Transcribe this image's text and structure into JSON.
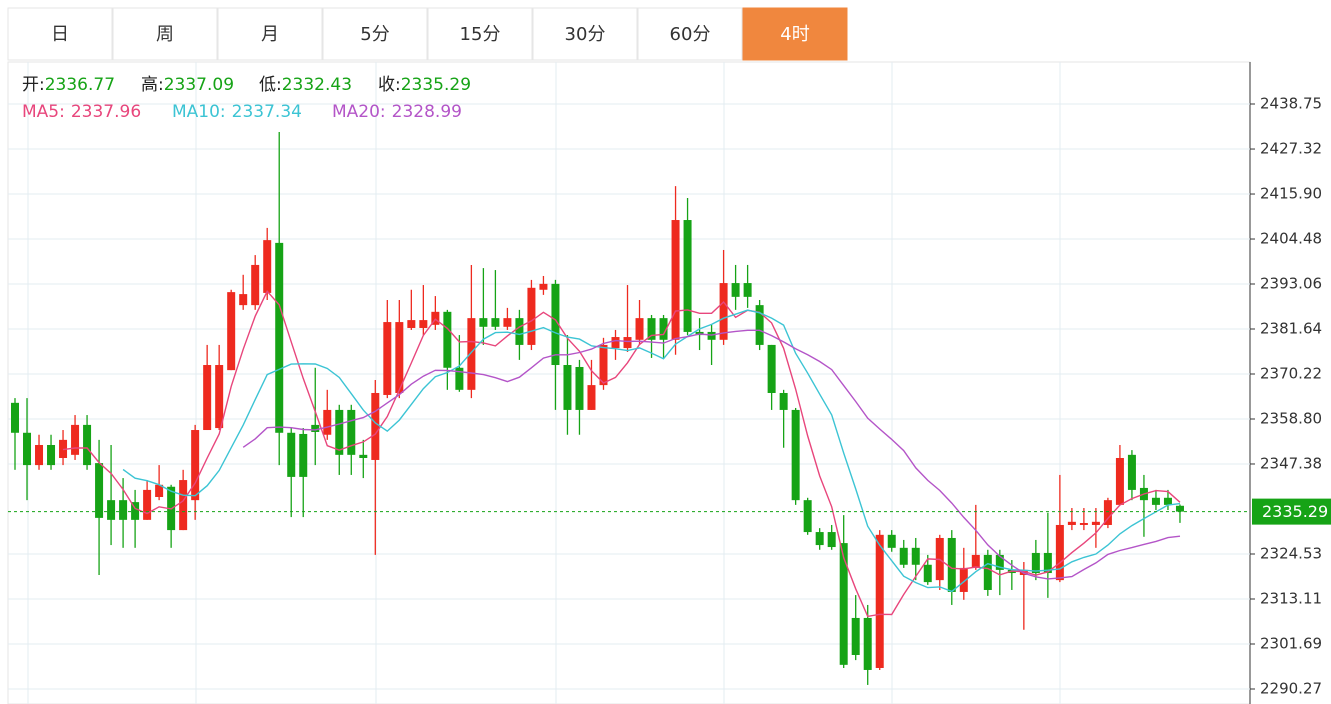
{
  "tabs": {
    "items": [
      "日",
      "周",
      "月",
      "5分",
      "15分",
      "30分",
      "60分",
      "4时"
    ],
    "active": 7
  },
  "chart_data": {
    "type": "candlestick",
    "ohlc_labels": [
      "开:",
      "高:",
      "低:",
      "收:"
    ],
    "ma": [
      {
        "name": "MA5:",
        "period": 5,
        "value": 2337.96,
        "color": "#e8467c"
      },
      {
        "name": "MA10:",
        "period": 10,
        "value": 2337.34,
        "color": "#3cc4d4"
      },
      {
        "name": "MA20:",
        "period": 20,
        "value": 2328.99,
        "color": "#b455c8"
      }
    ],
    "up_color": "#ee2a1f",
    "down_color": "#16a316",
    "ylim": [
      2286.46,
      2449.41
    ],
    "yticks": [
      2438.75,
      2427.32,
      {
        "value": 2415.9,
        "label": "2415.90"
      },
      2404.48,
      2393.06,
      2381.64,
      2370.22,
      {
        "value": 2358.8,
        "label": "2358.80"
      },
      2347.38,
      2324.53,
      2313.11,
      2301.69,
      2290.27
    ],
    "grid": true,
    "ohlc": [
      [
        2362.9,
        2364.1,
        2345.9,
        2355.3
      ],
      [
        2355.3,
        2364.1,
        2338.2,
        2347.1
      ],
      [
        2347.1,
        2354.8,
        2345.9,
        2352.2
      ],
      [
        2352.2,
        2354.8,
        2345.9,
        2347.1
      ],
      [
        2348.9,
        2356.0,
        2347.1,
        2353.5
      ],
      [
        2349.7,
        2359.8,
        2348.4,
        2357.3
      ],
      [
        2357.3,
        2359.8,
        2345.9,
        2347.1
      ],
      [
        2347.6,
        2353.5,
        2319.2,
        2333.7
      ],
      [
        2338.2,
        2352.2,
        2326.8,
        2333.2
      ],
      [
        2338.2,
        2343.8,
        2326.1,
        2333.2
      ],
      [
        2337.7,
        2340.8,
        2326.1,
        2333.2
      ],
      [
        2333.2,
        2343.3,
        2333.2,
        2340.8
      ],
      [
        2339.0,
        2347.1,
        2338.2,
        2342.1
      ],
      [
        2341.6,
        2342.1,
        2326.1,
        2330.6
      ],
      [
        2330.6,
        2345.9,
        2330.6,
        2343.3
      ],
      [
        2338.2,
        2357.3,
        2333.2,
        2356.0
      ],
      [
        2356.0,
        2377.6,
        2356.0,
        2372.5
      ],
      [
        2356.5,
        2377.6,
        2356.0,
        2372.5
      ],
      [
        2371.2,
        2391.6,
        2371.2,
        2391.0
      ],
      [
        2387.7,
        2395.4,
        2386.5,
        2390.5
      ],
      [
        2387.7,
        2400.4,
        2386.5,
        2397.9
      ],
      [
        2390.8,
        2407.3,
        2389.0,
        2404.2
      ],
      [
        2403.5,
        2431.65,
        2347.1,
        2355.3
      ],
      [
        2355.3,
        2356.5,
        2333.9,
        2344.1
      ],
      [
        2355.0,
        2356.5,
        2333.9,
        2344.1
      ],
      [
        2357.3,
        2371.8,
        2347.1,
        2355.5
      ],
      [
        2354.8,
        2366.2,
        2353.5,
        2361.1
      ],
      [
        2361.1,
        2362.4,
        2344.6,
        2349.7
      ],
      [
        2361.1,
        2362.4,
        2344.6,
        2349.7
      ],
      [
        2349.7,
        2353.5,
        2343.8,
        2348.9
      ],
      [
        2348.4,
        2368.7,
        2324.3,
        2365.4
      ],
      [
        2364.9,
        2389.0,
        2364.1,
        2383.4
      ],
      [
        2365.4,
        2389.0,
        2364.1,
        2383.4
      ],
      [
        2381.9,
        2391.6,
        2381.4,
        2383.9
      ],
      [
        2381.9,
        2392.8,
        2380.1,
        2383.9
      ],
      [
        2382.7,
        2390.0,
        2381.4,
        2386.0
      ],
      [
        2386.0,
        2386.5,
        2366.2,
        2371.8
      ],
      [
        2371.8,
        2380.1,
        2365.7,
        2366.2
      ],
      [
        2366.2,
        2397.9,
        2364.1,
        2384.4
      ],
      [
        2384.4,
        2397.1,
        2377.6,
        2382.2
      ],
      [
        2384.4,
        2396.6,
        2381.4,
        2382.2
      ],
      [
        2382.2,
        2387.0,
        2381.4,
        2384.4
      ],
      [
        2384.4,
        2386.5,
        2373.8,
        2377.6
      ],
      [
        2377.6,
        2394.1,
        2376.3,
        2392.1
      ],
      [
        2391.6,
        2395.1,
        2390.3,
        2393.1
      ],
      [
        2393.1,
        2394.1,
        2361.1,
        2372.5
      ],
      [
        2372.5,
        2380.1,
        2354.8,
        2361.1
      ],
      [
        2372.0,
        2373.8,
        2354.8,
        2361.1
      ],
      [
        2361.1,
        2373.8,
        2361.1,
        2367.4
      ],
      [
        2367.4,
        2379.4,
        2366.2,
        2377.6
      ],
      [
        2376.8,
        2381.4,
        2373.8,
        2379.6
      ],
      [
        2376.8,
        2392.8,
        2375.8,
        2379.6
      ],
      [
        2378.9,
        2389.0,
        2377.6,
        2384.4
      ],
      [
        2384.4,
        2385.2,
        2374.3,
        2378.9
      ],
      [
        2384.4,
        2385.2,
        2374.3,
        2378.9
      ],
      [
        2378.9,
        2417.9,
        2375.1,
        2409.3
      ],
      [
        2409.3,
        2414.9,
        2380.1,
        2380.9
      ],
      [
        2380.9,
        2384.4,
        2376.3,
        2380.1
      ],
      [
        2380.9,
        2382.7,
        2372.5,
        2378.9
      ],
      [
        2378.9,
        2401.7,
        2377.6,
        2393.3
      ],
      [
        2393.3,
        2397.9,
        2386.5,
        2389.8
      ],
      [
        2393.3,
        2397.9,
        2387.0,
        2389.8
      ],
      [
        2387.7,
        2389.0,
        2376.3,
        2377.6
      ],
      [
        2377.6,
        2377.6,
        2361.1,
        2365.4
      ],
      [
        2365.4,
        2366.2,
        2351.5,
        2361.1
      ],
      [
        2361.1,
        2361.6,
        2337.0,
        2338.2
      ],
      [
        2338.2,
        2338.8,
        2329.4,
        2330.1
      ],
      [
        2330.1,
        2331.1,
        2325.6,
        2326.8
      ],
      [
        2330.1,
        2331.9,
        2325.6,
        2326.3
      ],
      [
        2327.3,
        2334.4,
        2295.6,
        2296.4
      ],
      [
        2308.3,
        2314.1,
        2297.6,
        2298.9
      ],
      [
        2308.3,
        2311.6,
        2291.3,
        2295.1
      ],
      [
        2295.6,
        2330.6,
        2295.1,
        2329.4
      ],
      [
        2329.4,
        2330.6,
        2325.1,
        2326.1
      ],
      [
        2326.1,
        2328.1,
        2321.0,
        2321.8
      ],
      [
        2326.1,
        2328.6,
        2317.9,
        2321.8
      ],
      [
        2321.8,
        2324.3,
        2316.7,
        2317.4
      ],
      [
        2317.9,
        2329.4,
        2315.4,
        2328.6
      ],
      [
        2328.6,
        2330.6,
        2311.6,
        2314.9
      ],
      [
        2314.9,
        2326.1,
        2312.9,
        2321.0
      ],
      [
        2321.0,
        2337.0,
        2320.5,
        2324.3
      ],
      [
        2324.3,
        2325.6,
        2313.9,
        2315.4
      ],
      [
        2324.3,
        2325.6,
        2314.1,
        2320.5
      ],
      [
        2320.5,
        2323.0,
        2315.4,
        2319.7
      ],
      [
        2319.2,
        2322.5,
        2305.3,
        2320.5
      ],
      [
        2324.8,
        2328.1,
        2317.9,
        2319.7
      ],
      [
        2324.8,
        2335.0,
        2313.4,
        2319.7
      ],
      [
        2317.9,
        2344.6,
        2317.4,
        2331.9
      ],
      [
        2331.9,
        2336.2,
        2330.6,
        2332.7
      ],
      [
        2331.9,
        2336.2,
        2330.6,
        2332.4
      ],
      [
        2331.9,
        2336.2,
        2326.1,
        2332.7
      ],
      [
        2331.9,
        2338.8,
        2331.1,
        2338.2
      ],
      [
        2337.0,
        2352.2,
        2337.0,
        2348.9
      ],
      [
        2349.7,
        2350.9,
        2338.2,
        2340.8
      ],
      [
        2341.3,
        2344.6,
        2328.9,
        2338.2
      ],
      [
        2338.8,
        2340.8,
        2335.7,
        2337.0
      ],
      [
        2338.8,
        2340.8,
        2335.7,
        2337.0
      ],
      [
        2336.77,
        2337.09,
        2332.43,
        2335.29
      ]
    ]
  }
}
